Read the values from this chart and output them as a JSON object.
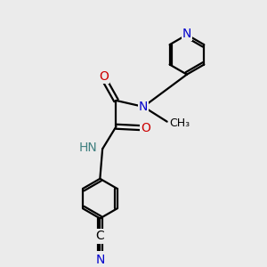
{
  "bg_color": "#ebebeb",
  "atom_colors": {
    "C": "#000000",
    "N": "#0000cc",
    "O": "#cc0000",
    "H": "#408080"
  },
  "bond_lw": 1.6,
  "font_size": 10,
  "font_size_small": 9
}
